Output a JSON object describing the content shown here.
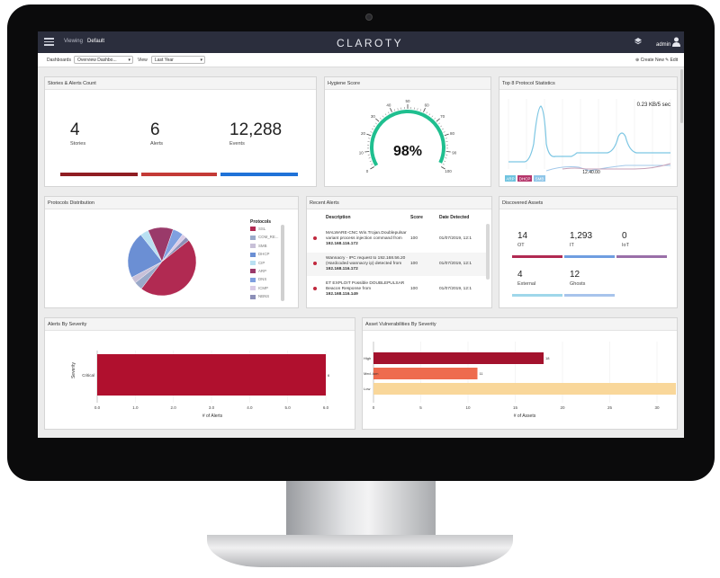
{
  "header": {
    "viewing_label": "Viewing",
    "viewing_value": "Default",
    "logo": "CLAROTY",
    "user": "admin"
  },
  "toolbar": {
    "dashboards_label": "Dashboards",
    "dashboard_value": "Overview Dashbo...",
    "view_label": "View",
    "view_value": "Last Year",
    "create_label": "⊕ Create New",
    "edit_label": "✎ Edit"
  },
  "stories": {
    "title": "Stories & Alerts Count",
    "stats": [
      {
        "value": "4",
        "label": "Stories"
      },
      {
        "value": "6",
        "label": "Alerts"
      },
      {
        "value": "12,288",
        "label": "Events"
      }
    ],
    "colors": [
      "#8f1d22",
      "#c43a36",
      "#1f72d8"
    ]
  },
  "hygiene": {
    "title": "Hygiene Score",
    "score_text": "98%",
    "score": 98,
    "ticks": [
      "0",
      "10",
      "20",
      "30",
      "40",
      "50",
      "60",
      "70",
      "80",
      "90",
      "100"
    ],
    "accent": "#1fbf8f"
  },
  "protocol_stats": {
    "title": "Top 8 Protocol Statistics",
    "rate_label": "0.23 KB/5 sec",
    "value_label": "12.40.00",
    "legend": [
      {
        "name": "ARP",
        "color": "#6fc3df"
      },
      {
        "name": "DHCP",
        "color": "#b5366b"
      },
      {
        "name": "SMB",
        "color": "#8ec5e8"
      }
    ]
  },
  "protocols_dist": {
    "title": "Protocols Distribution",
    "legend_title": "Protocols",
    "items": [
      {
        "name": "SSL",
        "color": "#b12a52",
        "value": 46
      },
      {
        "name": "COM_RE...",
        "color": "#9aa9c9",
        "value": 4
      },
      {
        "name": "SMB",
        "color": "#c8c0d8",
        "value": 3
      },
      {
        "name": "DHCP",
        "color": "#6b8fd4",
        "value": 22
      },
      {
        "name": "CIP",
        "color": "#b9e0f2",
        "value": 4
      },
      {
        "name": "ARP",
        "color": "#9a3a6a",
        "value": 12
      },
      {
        "name": "DNS",
        "color": "#7fa0e0",
        "value": 5
      },
      {
        "name": "ICMP",
        "color": "#d9cbe6",
        "value": 2
      },
      {
        "name": "NBNS",
        "color": "#8c8fb8",
        "value": 2
      }
    ]
  },
  "recent_alerts": {
    "title": "Recent Alerts",
    "columns": [
      "Description",
      "Score",
      "Date Detected"
    ],
    "rows": [
      {
        "desc": "MALWARE-CNC Win.Trojan.Doublepulsar variant process injection command from",
        "ip": "192.168.116.172",
        "score": "100",
        "date": "01/07/2019, 12:1"
      },
      {
        "desc": "Wannacry - IPC request to 192.168.56.20 (Hardcoded wannacry ip) detected from",
        "ip": "192.168.116.172",
        "score": "100",
        "date": "01/07/2019, 12:1"
      },
      {
        "desc": "ET EXPLOIT Possible DOUBLEPULSAR Beacon Response from",
        "ip": "192.168.116.149",
        "score": "100",
        "date": "01/07/2019, 12:1"
      }
    ]
  },
  "assets": {
    "title": "Discovered Assets",
    "items": [
      {
        "value": "14",
        "label": "OT",
        "color": "#b12a52"
      },
      {
        "value": "1,293",
        "label": "IT",
        "color": "#6f9ee0"
      },
      {
        "value": "0",
        "label": "IoT",
        "color": "#9a6fa8"
      },
      {
        "value": "4",
        "label": "External",
        "color": "#9fd7ea"
      },
      {
        "value": "12",
        "label": "Ghosts",
        "color": "#a8c4ec"
      }
    ]
  },
  "chart_data": [
    {
      "type": "bar",
      "title": "Alerts By Severity",
      "categories": [
        "Critical"
      ],
      "values": [
        6
      ],
      "xlabel": "# of Alerts",
      "ylabel": "Severity",
      "xlim": [
        0,
        6
      ],
      "xticks": [
        "0.0",
        "1.0",
        "2.0",
        "3.0",
        "4.0",
        "5.0",
        "6.0"
      ],
      "data_label": "6",
      "colors": [
        "#b0102e"
      ]
    },
    {
      "type": "bar",
      "title": "Asset Vulnerabilities By Severity",
      "categories": [
        "High",
        "Med..ium",
        "Low"
      ],
      "values": [
        18,
        11,
        32
      ],
      "xlabel": "# of Assets",
      "xlim": [
        0,
        32
      ],
      "xticks": [
        "0",
        "5",
        "10",
        "15",
        "20",
        "25",
        "30"
      ],
      "data_labels": [
        "18",
        "11",
        ""
      ],
      "colors": [
        "#a3122d",
        "#ee6b4e",
        "#f9d79a"
      ]
    }
  ]
}
